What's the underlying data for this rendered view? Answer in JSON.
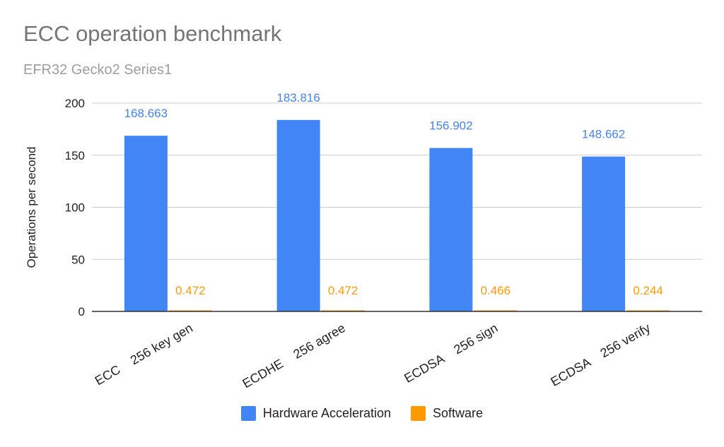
{
  "chart_data": {
    "type": "bar",
    "title": "ECC operation benchmark",
    "subtitle": "EFR32 Gecko2 Series1",
    "xlabel": "",
    "ylabel": "Operations per second",
    "ylim": [
      0,
      200
    ],
    "yticks": [
      0,
      50,
      100,
      150,
      200
    ],
    "grid": true,
    "legend_position": "bottom",
    "categories": [
      "ECC    256 key gen",
      "ECDHE    256 agree",
      "ECDSA    256 sign",
      "ECDSA    256 verify"
    ],
    "series": [
      {
        "name": "Hardware Acceleration",
        "color": "#4285f4",
        "values": [
          168.663,
          183.816,
          156.902,
          148.662
        ],
        "labels": [
          "168.663",
          "183.816",
          "156.902",
          "148.662"
        ]
      },
      {
        "name": "Software",
        "color": "#ff9900",
        "values": [
          0.472,
          0.472,
          0.466,
          0.244
        ],
        "labels": [
          "0.472",
          "0.472",
          "0.466",
          "0.244"
        ]
      }
    ]
  }
}
